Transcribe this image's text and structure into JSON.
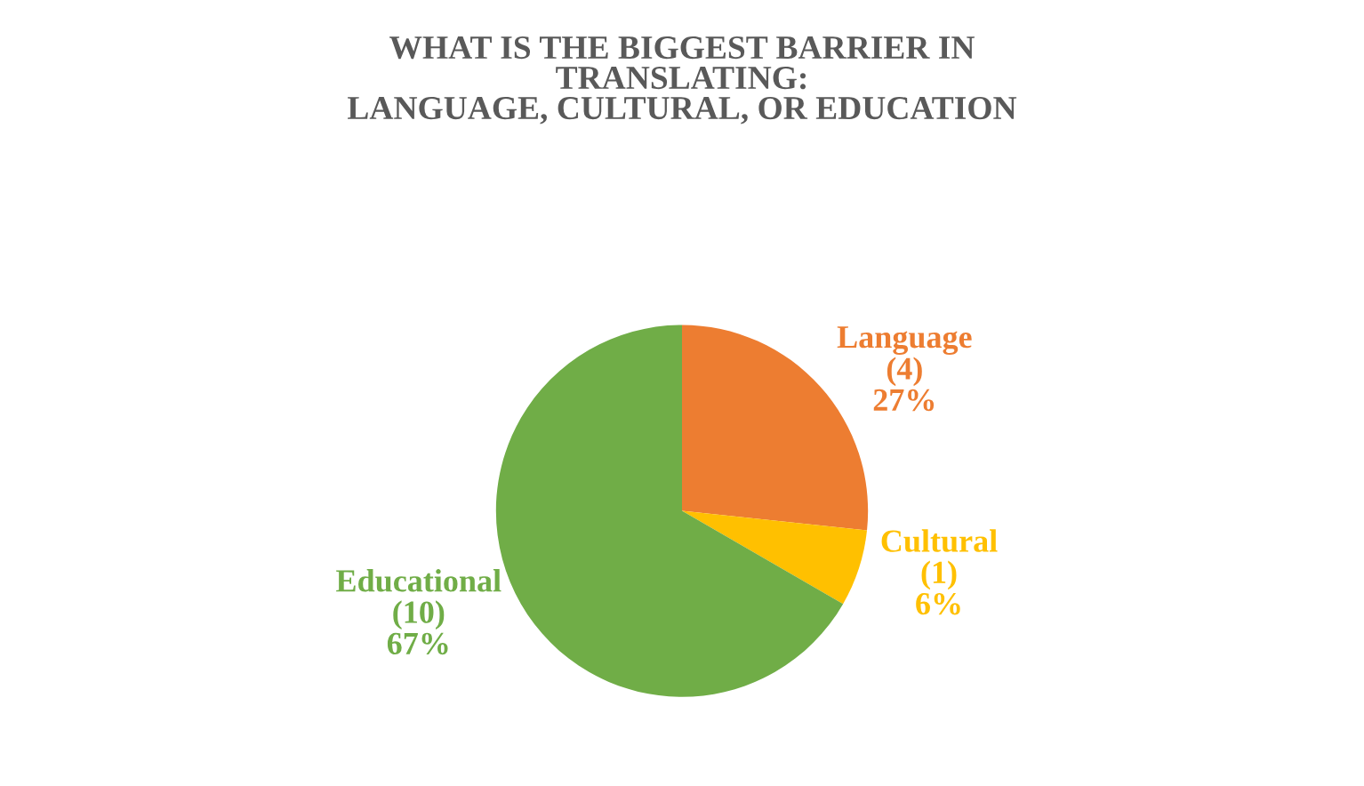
{
  "chart_data": {
    "type": "pie",
    "title": "WHAT IS THE BIGGEST BARRIER IN\nTRANSLATING:\nLANGUAGE, CULTURAL, OR EDUCATION",
    "categories": [
      "Language",
      "Cultural",
      "Educational"
    ],
    "values": [
      4,
      1,
      10
    ],
    "value_labels": [
      "(4)\n27%",
      "(1)\n6%",
      "(10)\n67%"
    ],
    "colors": [
      "#ed7d31",
      "#ffc000",
      "#70ad47"
    ],
    "legend": false
  }
}
